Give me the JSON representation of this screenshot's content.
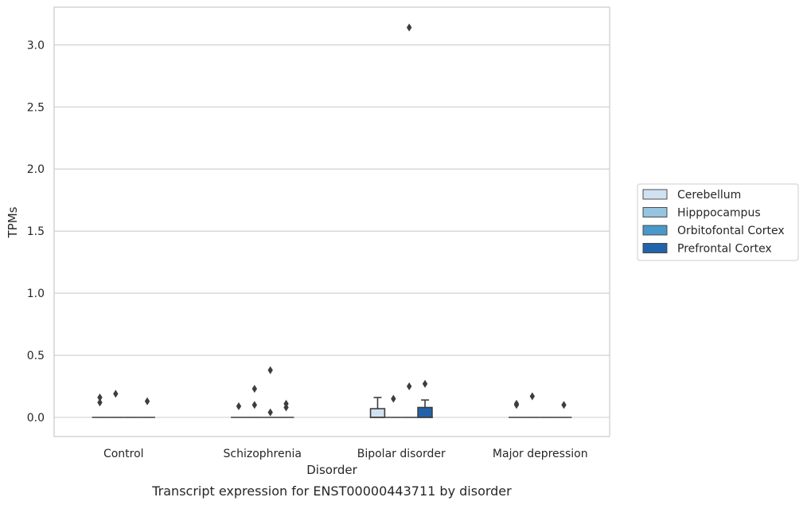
{
  "caption": "Transcript expression for ENST00000443711 by disorder",
  "chart_data": {
    "type": "box",
    "title": "",
    "xlabel": "Disorder",
    "ylabel": "TPMs",
    "ylim": [
      -0.15,
      3.3
    ],
    "yticks": [
      0.0,
      0.5,
      1.0,
      1.5,
      2.0,
      2.5,
      3.0
    ],
    "ytick_labels": [
      "0.0",
      "0.5",
      "1.0",
      "1.5",
      "2.0",
      "2.5",
      "3.0"
    ],
    "grid": "horizontal",
    "legend_position": "right",
    "categories": [
      "Control",
      "Schizophrenia",
      "Bipolar disorder",
      "Major depression"
    ],
    "series": [
      {
        "name": "Cerebellum",
        "color": "#d0e1f2",
        "stats": [
          {
            "q1": 0,
            "median": 0,
            "q3": 0,
            "whisker_low": 0,
            "whisker_high": 0,
            "outliers": [
              0.16,
              0.12
            ]
          },
          {
            "q1": 0,
            "median": 0,
            "q3": 0,
            "whisker_low": 0,
            "whisker_high": 0,
            "outliers": [
              0.09
            ]
          },
          {
            "q1": 0,
            "median": 0,
            "q3": 0.07,
            "whisker_low": 0,
            "whisker_high": 0.16,
            "outliers": []
          },
          {
            "q1": 0,
            "median": 0,
            "q3": 0,
            "whisker_low": 0,
            "whisker_high": 0,
            "outliers": [
              0.11,
              0.1
            ]
          }
        ]
      },
      {
        "name": "Hipppocampus",
        "color": "#94c4df",
        "stats": [
          {
            "q1": 0,
            "median": 0,
            "q3": 0,
            "whisker_low": 0,
            "whisker_high": 0,
            "outliers": [
              0.19
            ]
          },
          {
            "q1": 0,
            "median": 0,
            "q3": 0,
            "whisker_low": 0,
            "whisker_high": 0,
            "outliers": [
              0.23,
              0.1
            ]
          },
          {
            "q1": 0,
            "median": 0,
            "q3": 0,
            "whisker_low": 0,
            "whisker_high": 0,
            "outliers": [
              0.15
            ]
          },
          {
            "q1": 0,
            "median": 0,
            "q3": 0,
            "whisker_low": 0,
            "whisker_high": 0,
            "outliers": [
              0.17
            ]
          }
        ]
      },
      {
        "name": "Orbitofontal Cortex",
        "color": "#4a98c9",
        "stats": [
          {
            "q1": 0,
            "median": 0,
            "q3": 0,
            "whisker_low": 0,
            "whisker_high": 0,
            "outliers": []
          },
          {
            "q1": 0,
            "median": 0,
            "q3": 0,
            "whisker_low": 0,
            "whisker_high": 0,
            "outliers": [
              0.38,
              0.04
            ]
          },
          {
            "q1": 0,
            "median": 0,
            "q3": 0,
            "whisker_low": 0,
            "whisker_high": 0,
            "outliers": [
              3.14,
              0.25
            ]
          },
          {
            "q1": 0,
            "median": 0,
            "q3": 0,
            "whisker_low": 0,
            "whisker_high": 0,
            "outliers": []
          }
        ]
      },
      {
        "name": "Prefrontal Cortex",
        "color": "#2163aa",
        "stats": [
          {
            "q1": 0,
            "median": 0,
            "q3": 0,
            "whisker_low": 0,
            "whisker_high": 0,
            "outliers": [
              0.13
            ]
          },
          {
            "q1": 0,
            "median": 0,
            "q3": 0,
            "whisker_low": 0,
            "whisker_high": 0,
            "outliers": [
              0.11,
              0.08
            ]
          },
          {
            "q1": 0,
            "median": 0,
            "q3": 0.08,
            "whisker_low": 0,
            "whisker_high": 0.14,
            "outliers": [
              0.27
            ]
          },
          {
            "q1": 0,
            "median": 0,
            "q3": 0,
            "whisker_low": 0,
            "whisker_high": 0,
            "outliers": [
              0.1
            ]
          }
        ]
      }
    ]
  }
}
